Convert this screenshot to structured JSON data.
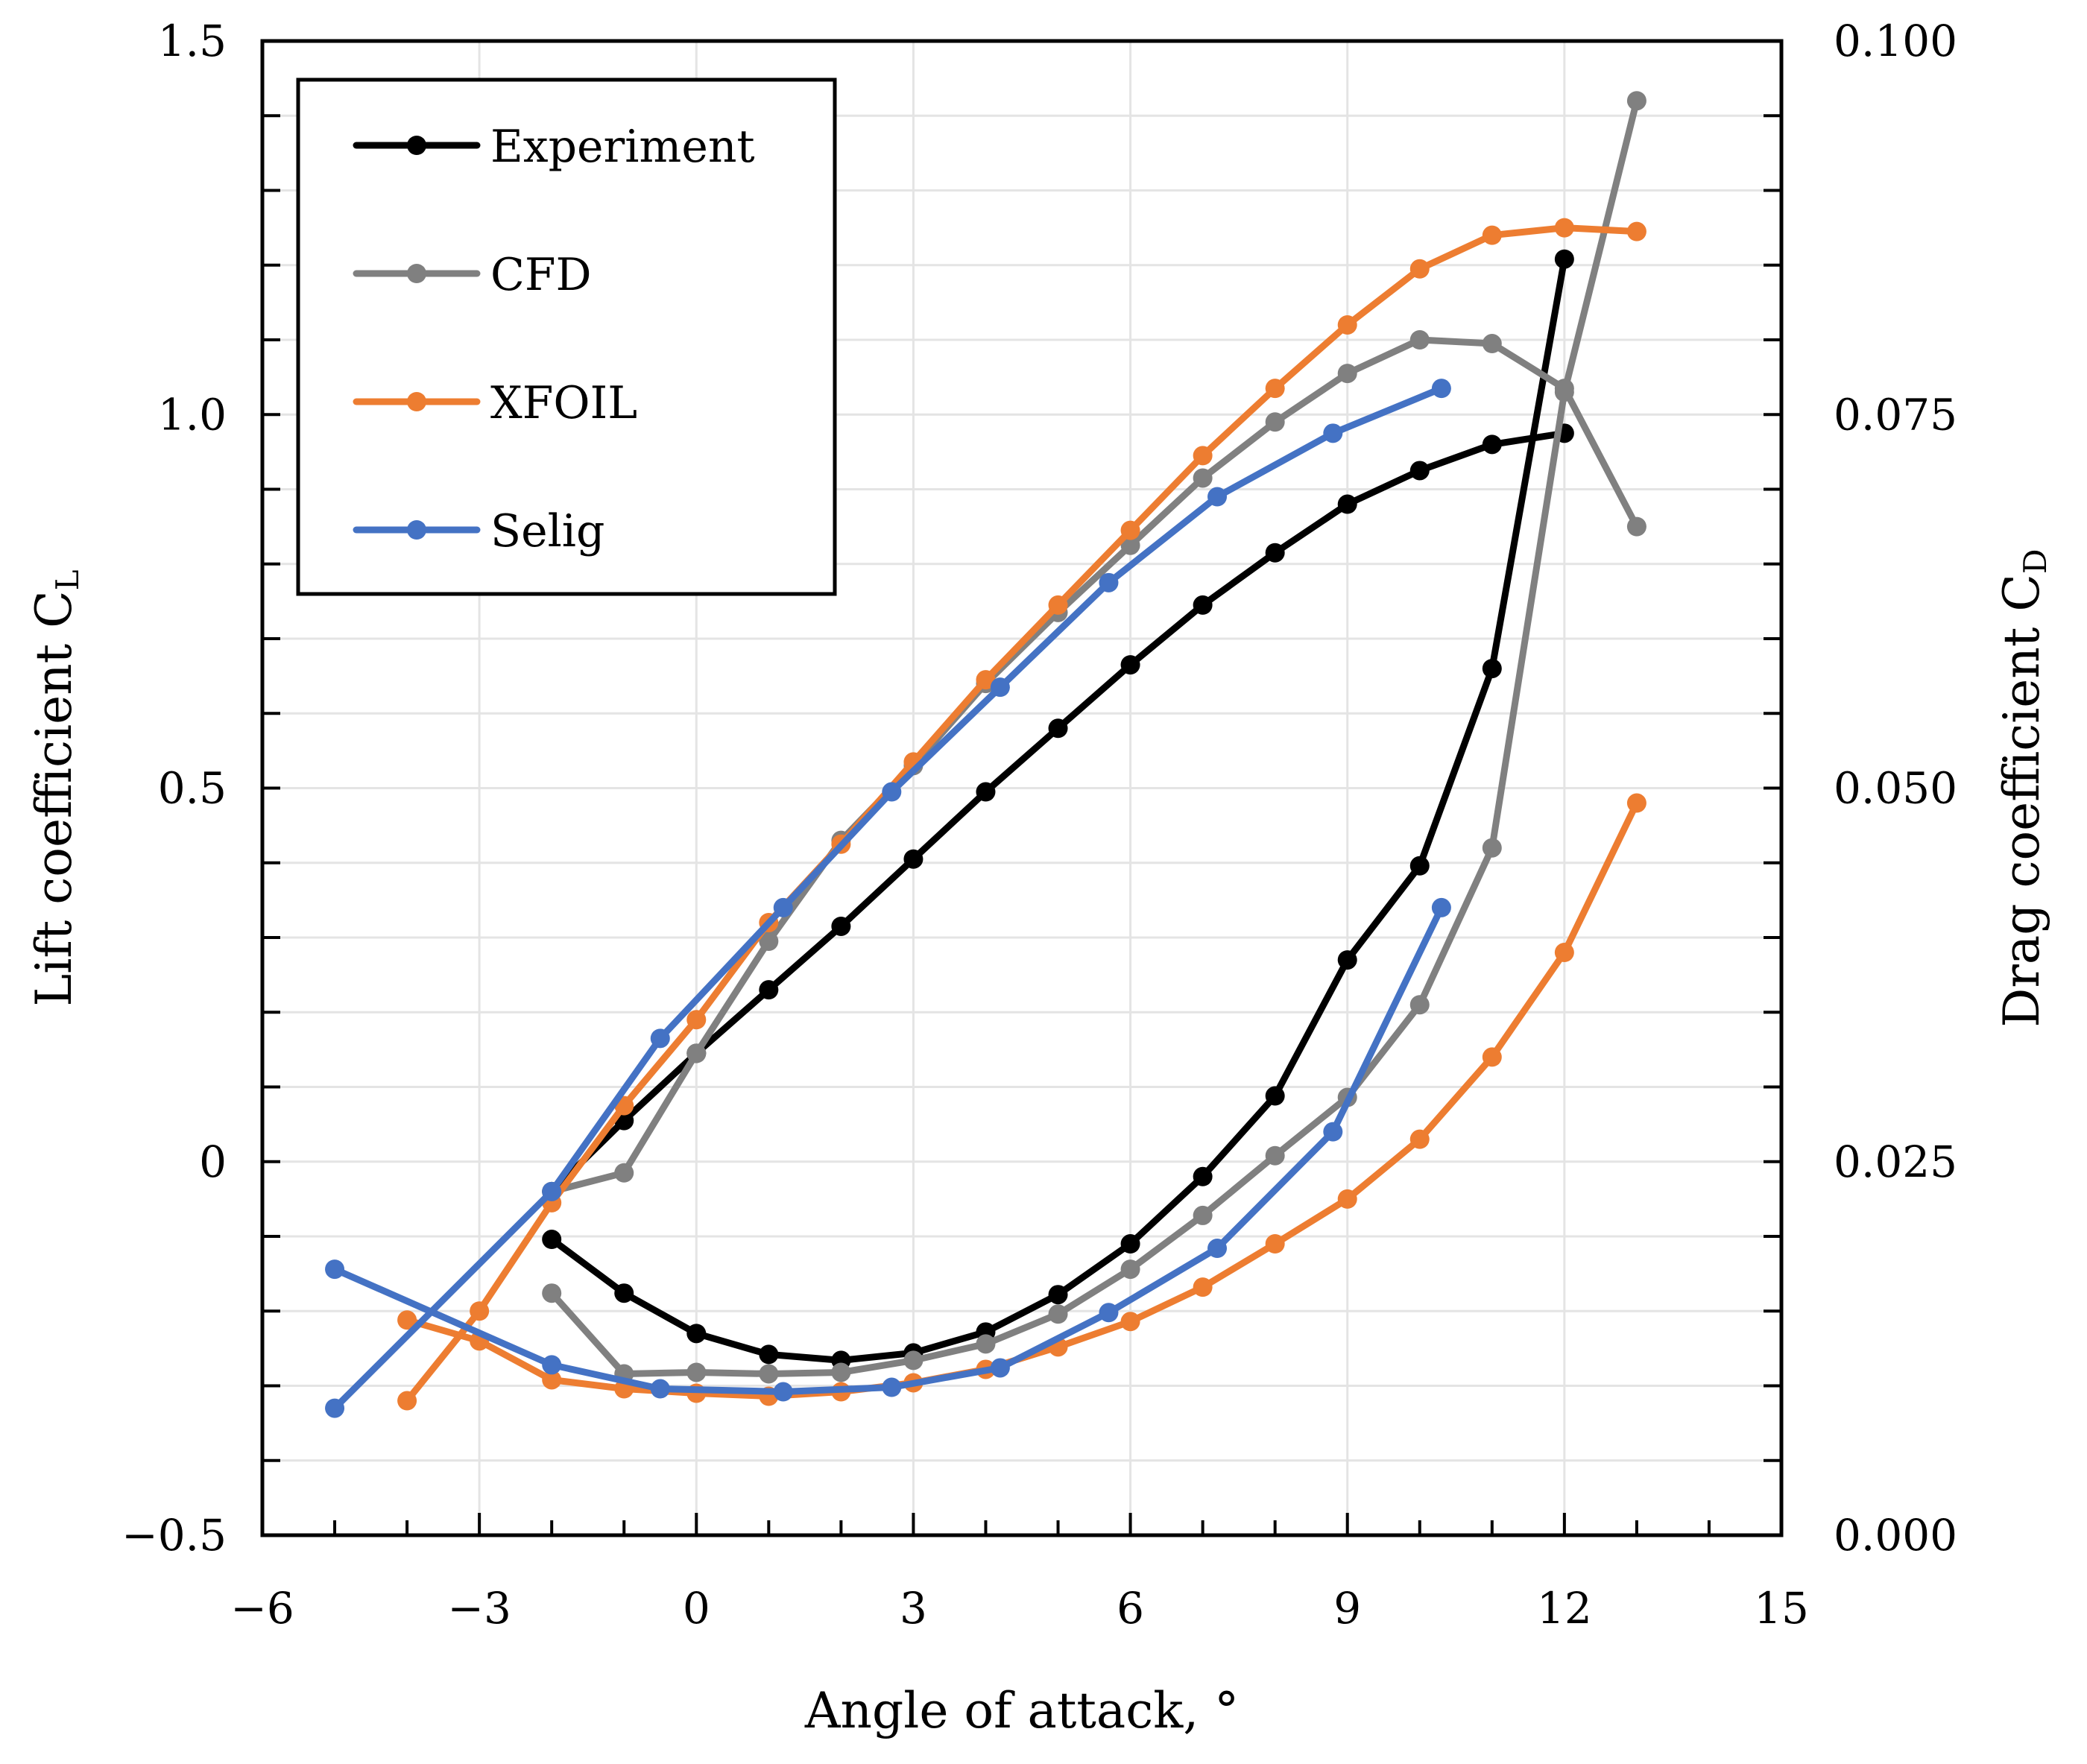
{
  "chart_data": {
    "type": "line",
    "title": "",
    "xlabel": "Angle of attack, °",
    "ylabel": "Lift coefficient C",
    "ylabel_sub": "L",
    "y2label": "Drag coefficient C",
    "y2label_sub": "D",
    "xlim": [
      -6,
      15
    ],
    "ylim": [
      -0.5,
      1.5
    ],
    "y2lim": [
      0.0,
      0.1
    ],
    "x_ticks": [
      -6,
      -3,
      0,
      3,
      6,
      9,
      12,
      15
    ],
    "x_tick_labels": [
      "−6",
      "−3",
      "0",
      "3",
      "6",
      "9",
      "12",
      "15"
    ],
    "y_ticks": [
      -0.5,
      0,
      0.5,
      1.0,
      1.5
    ],
    "y_tick_labels": [
      "−0.5",
      "0",
      "0.5",
      "1.0",
      "1.5"
    ],
    "y2_ticks": [
      0.0,
      0.025,
      0.05,
      0.075,
      0.1
    ],
    "y2_tick_labels": [
      "0.000",
      "0.025",
      "0.050",
      "0.075",
      "0.100"
    ],
    "grid": true,
    "legend_position": "top-left",
    "series": [
      {
        "name": "Experiment",
        "color": "#000000",
        "lift": {
          "x": [
            -2,
            -1,
            0,
            1,
            2,
            3,
            4,
            5,
            6,
            7,
            8,
            9,
            10,
            11,
            12
          ],
          "y": [
            -0.04,
            0.055,
            0.145,
            0.23,
            0.315,
            0.405,
            0.495,
            0.58,
            0.665,
            0.745,
            0.815,
            0.88,
            0.925,
            0.96,
            0.975
          ]
        },
        "drag": {
          "x": [
            -2,
            -1,
            0,
            1,
            2,
            3,
            4,
            5,
            6,
            7,
            8,
            9,
            10,
            11,
            12
          ],
          "y": [
            0.0198,
            0.0162,
            0.0135,
            0.0121,
            0.0117,
            0.0122,
            0.0136,
            0.0161,
            0.0195,
            0.024,
            0.0294,
            0.0385,
            0.0448,
            0.058,
            0.0854
          ]
        }
      },
      {
        "name": "CFD",
        "color": "#808080",
        "lift": {
          "x": [
            -2,
            -1,
            0,
            1,
            2,
            3,
            4,
            5,
            6,
            7,
            8,
            9,
            10,
            11,
            12,
            13
          ],
          "y": [
            -0.04,
            -0.015,
            0.145,
            0.295,
            0.43,
            0.53,
            0.64,
            0.735,
            0.825,
            0.915,
            0.99,
            1.055,
            1.1,
            1.095,
            1.035,
            0.85
          ]
        },
        "drag": {
          "x": [
            -2,
            -1,
            0,
            1,
            2,
            3,
            4,
            5,
            6,
            7,
            8,
            9,
            10,
            11,
            12,
            13
          ],
          "y": [
            0.0162,
            0.0108,
            0.0109,
            0.0108,
            0.0109,
            0.0117,
            0.0128,
            0.0148,
            0.0178,
            0.0214,
            0.0254,
            0.0293,
            0.0355,
            0.046,
            0.0765,
            0.096
          ]
        }
      },
      {
        "name": "XFOIL",
        "color": "#ED7D31",
        "lift": {
          "x": [
            -4,
            -3,
            -2,
            -1,
            0,
            1,
            2,
            3,
            4,
            5,
            6,
            7,
            8,
            9,
            10,
            11,
            12,
            13
          ],
          "y": [
            -0.32,
            -0.2,
            -0.055,
            0.075,
            0.19,
            0.32,
            0.425,
            0.535,
            0.645,
            0.745,
            0.845,
            0.945,
            1.035,
            1.12,
            1.195,
            1.24,
            1.25,
            1.245
          ]
        },
        "drag": {
          "x": [
            -4,
            -3,
            -2,
            -1,
            0,
            1,
            2,
            3,
            4,
            5,
            6,
            7,
            8,
            9,
            10,
            11,
            12,
            13
          ],
          "y": [
            0.0144,
            0.013,
            0.0104,
            0.0098,
            0.0095,
            0.0093,
            0.0096,
            0.0102,
            0.0111,
            0.0126,
            0.0143,
            0.0166,
            0.0195,
            0.0225,
            0.0265,
            0.032,
            0.039,
            0.049
          ]
        }
      },
      {
        "name": "Selig",
        "color": "#4472C4",
        "lift": {
          "x": [
            -5,
            -2,
            -0.5,
            1.2,
            2.7,
            4.2,
            5.7,
            7.2,
            8.8,
            10.3
          ],
          "y": [
            -0.33,
            -0.04,
            0.165,
            0.34,
            0.495,
            0.635,
            0.775,
            0.89,
            0.975,
            1.035
          ]
        },
        "drag": {
          "x": [
            -5,
            -2,
            -0.5,
            1.2,
            2.7,
            4.2,
            5.7,
            7.2,
            8.8,
            10.3
          ],
          "y": [
            0.0178,
            0.0114,
            0.0098,
            0.0096,
            0.0099,
            0.0112,
            0.0149,
            0.0192,
            0.027,
            0.042
          ]
        }
      }
    ]
  }
}
